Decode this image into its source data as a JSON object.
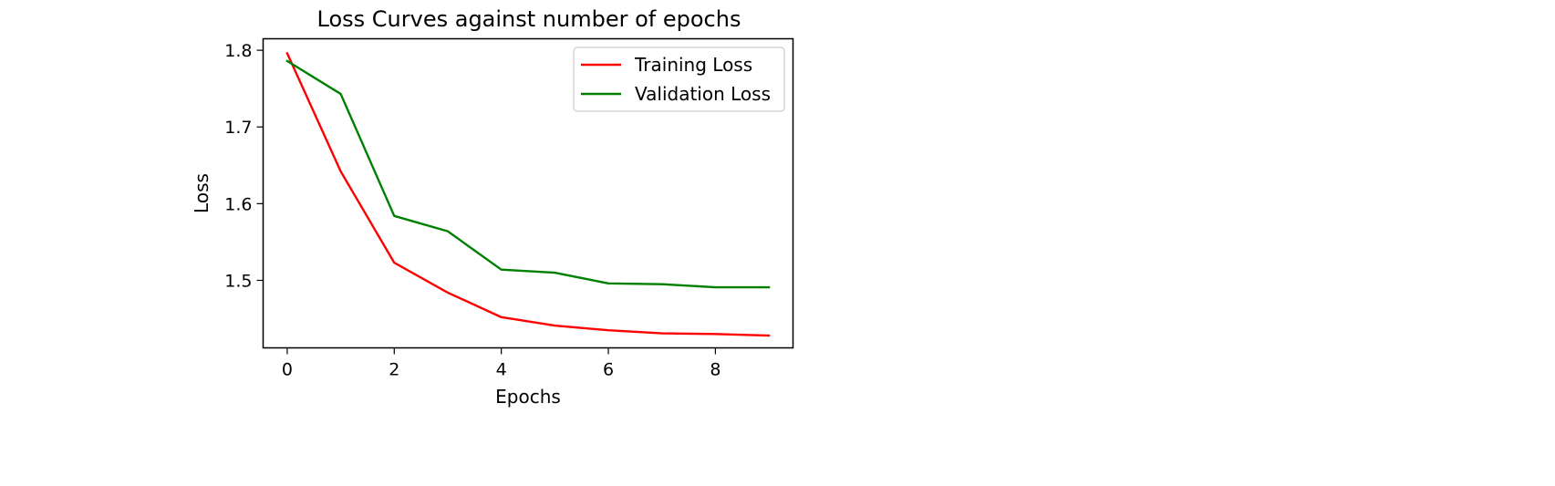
{
  "chart_data": {
    "type": "line",
    "title": "Loss Curves against number of epochs",
    "xlabel": "Epochs",
    "ylabel": "Loss",
    "xlim": [
      -0.45,
      9.45
    ],
    "ylim": [
      1.412,
      1.815
    ],
    "xticks": [
      0,
      2,
      4,
      6,
      8
    ],
    "yticks": [
      1.5,
      1.6,
      1.7,
      1.8
    ],
    "xtick_labels": [
      "0",
      "2",
      "4",
      "6",
      "8"
    ],
    "ytick_labels": [
      "1.5",
      "1.6",
      "1.7",
      "1.8"
    ],
    "grid": false,
    "legend_position": "top-right",
    "x": [
      0,
      1,
      2,
      3,
      4,
      5,
      6,
      7,
      8,
      9
    ],
    "series": [
      {
        "name": "Training Loss",
        "color": "#ff0000",
        "values": [
          1.796,
          1.642,
          1.523,
          1.484,
          1.452,
          1.441,
          1.435,
          1.431,
          1.43,
          1.428
        ]
      },
      {
        "name": "Validation Loss",
        "color": "#008000",
        "values": [
          1.786,
          1.743,
          1.584,
          1.564,
          1.514,
          1.51,
          1.496,
          1.495,
          1.491,
          1.491
        ]
      }
    ]
  }
}
